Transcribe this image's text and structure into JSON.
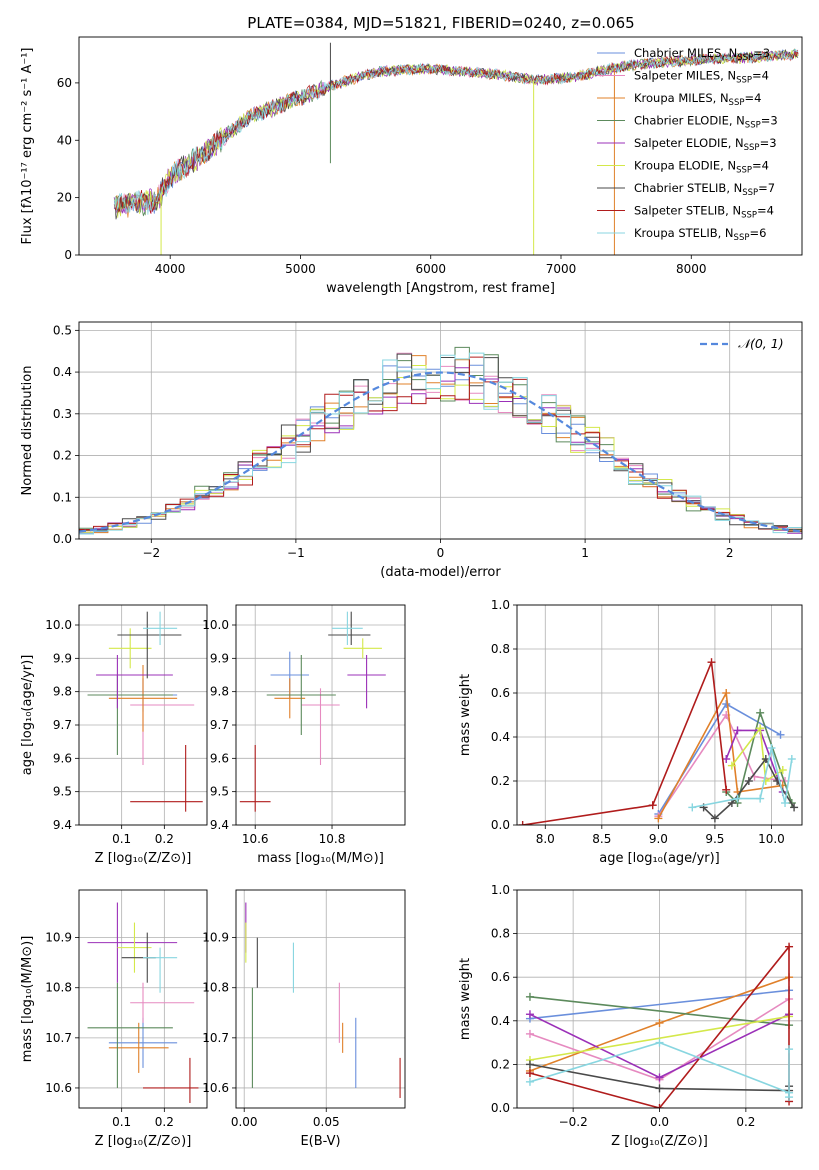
{
  "suptitle": "PLATE=0384, MJD=51821, FIBERID=0240, z=0.065",
  "colors": {
    "c1": "#6a8fdc",
    "c2": "#e68ac0",
    "c3": "#e0802a",
    "c4": "#5c8a5c",
    "c5": "#9b30b8",
    "c6": "#d4e84a",
    "c7": "#4a4a4a",
    "c8": "#b01c1c",
    "c9": "#88d6e0",
    "normal_curve": "#5588dd"
  },
  "models": [
    {
      "key": "c1",
      "name": "Chabrier MILES",
      "nssp": "3"
    },
    {
      "key": "c2",
      "name": "Salpeter MILES",
      "nssp": "4"
    },
    {
      "key": "c3",
      "name": "Kroupa MILES",
      "nssp": "4"
    },
    {
      "key": "c4",
      "name": "Chabrier ELODIE",
      "nssp": "3"
    },
    {
      "key": "c5",
      "name": "Salpeter ELODIE",
      "nssp": "3"
    },
    {
      "key": "c6",
      "name": "Kroupa ELODIE",
      "nssp": "4"
    },
    {
      "key": "c7",
      "name": "Chabrier STELIB",
      "nssp": "7"
    },
    {
      "key": "c8",
      "name": "Salpeter STELIB",
      "nssp": "4"
    },
    {
      "key": "c9",
      "name": "Kroupa STELIB",
      "nssp": "6"
    }
  ],
  "chart_data": [
    {
      "id": "spectrum",
      "type": "line",
      "xlabel": "wavelength [Angstrom, rest frame]",
      "ylabel": "Flux [fλ10⁻¹⁷ erg cm⁻² s⁻¹ A⁻¹]",
      "xlim": [
        3300,
        8850
      ],
      "ylim": [
        0,
        76
      ],
      "xticks": [
        4000,
        5000,
        6000,
        7000,
        8000
      ],
      "yticks": [
        0,
        20,
        40,
        60
      ],
      "legend": "upper right",
      "grid": false,
      "continuum_nodes": [
        [
          3570,
          17
        ],
        [
          3900,
          19
        ],
        [
          4000,
          27
        ],
        [
          4300,
          37
        ],
        [
          4600,
          48
        ],
        [
          5000,
          55
        ],
        [
          5300,
          60
        ],
        [
          5600,
          64
        ],
        [
          6000,
          65
        ],
        [
          6500,
          63
        ],
        [
          6800,
          61
        ],
        [
          7100,
          62
        ],
        [
          7500,
          66
        ],
        [
          8000,
          68
        ],
        [
          8500,
          69
        ],
        [
          8820,
          70
        ]
      ],
      "features": [
        {
          "x": 3930,
          "y": 0
        },
        {
          "x": 5230,
          "y": 74
        },
        {
          "x": 5230,
          "y": 32
        },
        {
          "x": 6790,
          "y": 0
        },
        {
          "x": 7410,
          "y": 0
        }
      ]
    },
    {
      "id": "residuals",
      "type": "area",
      "xlabel": "(data-model)/error",
      "ylabel": "Normed distribution",
      "xlim": [
        -2.5,
        2.5
      ],
      "ylim": [
        0,
        0.52
      ],
      "xticks": [
        -2,
        -1,
        0,
        1,
        2
      ],
      "yticks": [
        0.0,
        0.1,
        0.2,
        0.3,
        0.4,
        0.5
      ],
      "grid": true,
      "legend": "upper right",
      "legend_label": "𝒩(0, 1)",
      "bin_width": 0.1,
      "x_start": -2.5,
      "hist_seeds": [
        11,
        23,
        37,
        41,
        53,
        67,
        71,
        83,
        97
      ]
    },
    {
      "id": "age_vs_z",
      "type": "scatter",
      "xlabel": "Z [log₁₀(Z/Z⊙)]",
      "ylabel": "age  [log₁₀(age/yr)]",
      "xlim": [
        0.0,
        0.3
      ],
      "ylim": [
        9.4,
        10.06
      ],
      "xticks": [
        0.1,
        0.2
      ],
      "yticks": [
        9.4,
        9.5,
        9.6,
        9.7,
        9.8,
        9.9,
        10.0
      ],
      "grid": true,
      "points": [
        {
          "c": "c1",
          "x": 0.15,
          "xerr": [
            0.08,
            0.08
          ],
          "y": 9.79,
          "yerr": [
            0.05,
            0.05
          ]
        },
        {
          "c": "c2",
          "x": 0.15,
          "xerr": [
            0.03,
            0.12
          ],
          "y": 9.76,
          "yerr": [
            0.18,
            0.08
          ]
        },
        {
          "c": "c3",
          "x": 0.15,
          "xerr": [
            0.08,
            0.08
          ],
          "y": 9.78,
          "yerr": [
            0.1,
            0.1
          ]
        },
        {
          "c": "c4",
          "x": 0.09,
          "xerr": [
            0.07,
            0.13
          ],
          "y": 9.79,
          "yerr": [
            0.18,
            0.06
          ]
        },
        {
          "c": "c5",
          "x": 0.09,
          "xerr": [
            0.05,
            0.13
          ],
          "y": 9.85,
          "yerr": [
            0.1,
            0.06
          ]
        },
        {
          "c": "c6",
          "x": 0.12,
          "xerr": [
            0.05,
            0.05
          ],
          "y": 9.93,
          "yerr": [
            0.06,
            0.06
          ]
        },
        {
          "c": "c7",
          "x": 0.16,
          "xerr": [
            0.07,
            0.08
          ],
          "y": 9.97,
          "yerr": [
            0.13,
            0.07
          ]
        },
        {
          "c": "c8",
          "x": 0.25,
          "xerr": [
            0.13,
            0.04
          ],
          "y": 9.47,
          "yerr": [
            0.03,
            0.17
          ]
        },
        {
          "c": "c9",
          "x": 0.19,
          "xerr": [
            0.04,
            0.04
          ],
          "y": 9.99,
          "yerr": [
            0.05,
            0.05
          ]
        }
      ]
    },
    {
      "id": "age_vs_mass",
      "type": "scatter",
      "xlabel": "mass [log₁₀(M/M⊙)]",
      "ylabel": "",
      "xlim": [
        10.55,
        10.99
      ],
      "ylim": [
        9.4,
        10.06
      ],
      "xticks": [
        10.6,
        10.8
      ],
      "yticks": [
        9.4,
        9.5,
        9.6,
        9.7,
        9.8,
        9.9,
        10.0
      ],
      "grid": true,
      "points": [
        {
          "c": "c1",
          "x": 10.69,
          "xerr": [
            0.05,
            0.05
          ],
          "y": 9.85,
          "yerr": [
            0.07,
            0.07
          ]
        },
        {
          "c": "c2",
          "x": 10.77,
          "xerr": [
            0.05,
            0.05
          ],
          "y": 9.76,
          "yerr": [
            0.18,
            0.05
          ]
        },
        {
          "c": "c3",
          "x": 10.69,
          "xerr": [
            0.04,
            0.04
          ],
          "y": 9.78,
          "yerr": [
            0.06,
            0.06
          ]
        },
        {
          "c": "c4",
          "x": 10.72,
          "xerr": [
            0.09,
            0.09
          ],
          "y": 9.79,
          "yerr": [
            0.12,
            0.12
          ]
        },
        {
          "c": "c5",
          "x": 10.89,
          "xerr": [
            0.05,
            0.05
          ],
          "y": 9.85,
          "yerr": [
            0.1,
            0.06
          ]
        },
        {
          "c": "c6",
          "x": 10.88,
          "xerr": [
            0.05,
            0.05
          ],
          "y": 9.93,
          "yerr": [
            0.03,
            0.03
          ]
        },
        {
          "c": "c7",
          "x": 10.85,
          "xerr": [
            0.06,
            0.05
          ],
          "y": 9.97,
          "yerr": [
            0.03,
            0.07
          ]
        },
        {
          "c": "c8",
          "x": 10.6,
          "xerr": [
            0.04,
            0.04
          ],
          "y": 9.47,
          "yerr": [
            0.03,
            0.17
          ]
        },
        {
          "c": "c9",
          "x": 10.84,
          "xerr": [
            0.04,
            0.04
          ],
          "y": 9.99,
          "yerr": [
            0.05,
            0.05
          ]
        }
      ]
    },
    {
      "id": "weight_vs_age",
      "type": "line",
      "xlabel": "age  [log₁₀(age/yr)]",
      "ylabel": "mass weight",
      "xlim": [
        7.75,
        10.27
      ],
      "ylim": [
        0.0,
        1.0
      ],
      "xticks": [
        8.0,
        8.5,
        9.0,
        9.5,
        10.0
      ],
      "yticks": [
        0.0,
        0.2,
        0.4,
        0.6,
        0.8,
        1.0
      ],
      "grid": true,
      "series": [
        {
          "c": "c1",
          "x": [
            9.0,
            9.6,
            10.08
          ],
          "y": [
            0.05,
            0.55,
            0.41
          ]
        },
        {
          "c": "c2",
          "x": [
            9.0,
            9.6,
            9.85,
            10.12
          ],
          "y": [
            0.04,
            0.5,
            0.22,
            0.2
          ]
        },
        {
          "c": "c3",
          "x": [
            9.0,
            9.6,
            9.7,
            10.1
          ],
          "y": [
            0.03,
            0.6,
            0.15,
            0.18
          ]
        },
        {
          "c": "c4",
          "x": [
            9.6,
            9.7,
            9.9,
            10.18
          ],
          "y": [
            0.15,
            0.1,
            0.51,
            0.1
          ]
        },
        {
          "c": "c5",
          "x": [
            9.6,
            9.7,
            9.9,
            10.1
          ],
          "y": [
            0.3,
            0.43,
            0.43,
            0.15
          ]
        },
        {
          "c": "c6",
          "x": [
            9.65,
            9.9,
            9.95,
            10.1
          ],
          "y": [
            0.27,
            0.44,
            0.2,
            0.25
          ]
        },
        {
          "c": "c7",
          "x": [
            9.4,
            9.5,
            9.65,
            9.8,
            9.95,
            10.05,
            10.2
          ],
          "y": [
            0.08,
            0.03,
            0.1,
            0.2,
            0.3,
            0.2,
            0.08
          ]
        },
        {
          "c": "c8",
          "x": [
            7.8,
            8.95,
            9.47,
            9.6
          ],
          "y": [
            0.0,
            0.09,
            0.74,
            0.16
          ]
        },
        {
          "c": "c9",
          "x": [
            9.3,
            9.7,
            9.9,
            10.0,
            10.12,
            10.18
          ],
          "y": [
            0.08,
            0.12,
            0.12,
            0.35,
            0.1,
            0.3
          ]
        }
      ]
    },
    {
      "id": "mass_vs_z",
      "type": "scatter",
      "xlabel": "Z [log₁₀(Z/Z⊙)]",
      "ylabel": "mass [log₁₀(M/M⊙)]",
      "xlim": [
        0.0,
        0.3
      ],
      "ylim": [
        10.56,
        10.995
      ],
      "xticks": [
        0.1,
        0.2
      ],
      "yticks": [
        10.6,
        10.7,
        10.8,
        10.9
      ],
      "grid": true,
      "points": [
        {
          "c": "c1",
          "x": 0.15,
          "xerr": [
            0.08,
            0.08
          ],
          "y": 10.69,
          "yerr": [
            0.05,
            0.05
          ]
        },
        {
          "c": "c2",
          "x": 0.15,
          "xerr": [
            0.03,
            0.12
          ],
          "y": 10.77,
          "yerr": [
            0.04,
            0.04
          ]
        },
        {
          "c": "c3",
          "x": 0.14,
          "xerr": [
            0.07,
            0.07
          ],
          "y": 10.68,
          "yerr": [
            0.05,
            0.05
          ]
        },
        {
          "c": "c4",
          "x": 0.09,
          "xerr": [
            0.07,
            0.13
          ],
          "y": 10.72,
          "yerr": [
            0.12,
            0.09
          ]
        },
        {
          "c": "c5",
          "x": 0.09,
          "xerr": [
            0.07,
            0.14
          ],
          "y": 10.89,
          "yerr": [
            0.08,
            0.08
          ]
        },
        {
          "c": "c6",
          "x": 0.13,
          "xerr": [
            0.04,
            0.04
          ],
          "y": 10.88,
          "yerr": [
            0.05,
            0.05
          ]
        },
        {
          "c": "c7",
          "x": 0.16,
          "xerr": [
            0.06,
            0.02
          ],
          "y": 10.86,
          "yerr": [
            0.05,
            0.05
          ]
        },
        {
          "c": "c8",
          "x": 0.26,
          "xerr": [
            0.11,
            0.02
          ],
          "y": 10.6,
          "yerr": [
            0.03,
            0.06
          ]
        },
        {
          "c": "c9",
          "x": 0.19,
          "xerr": [
            0.04,
            0.04
          ],
          "y": 10.86,
          "yerr": [
            0.07,
            0.02
          ]
        }
      ]
    },
    {
      "id": "mass_vs_ebv",
      "type": "scatter",
      "xlabel": "E(B-V)",
      "ylabel": "",
      "xlim": [
        -0.005,
        0.098
      ],
      "ylim": [
        10.56,
        10.995
      ],
      "xticks": [
        0.0,
        0.05
      ],
      "xtick_labels": [
        "0.00",
        "0.05"
      ],
      "yticks": [
        10.6,
        10.7,
        10.8,
        10.9
      ],
      "grid": true,
      "points": [
        {
          "c": "c1",
          "x": 0.068,
          "y": 10.67,
          "yerr": [
            0.07,
            0.07
          ]
        },
        {
          "c": "c2",
          "x": 0.058,
          "y": 10.75,
          "yerr": [
            0.06,
            0.06
          ]
        },
        {
          "c": "c3",
          "x": 0.06,
          "y": 10.7,
          "yerr": [
            0.03,
            0.03
          ]
        },
        {
          "c": "c4",
          "x": 0.005,
          "y": 10.7,
          "yerr": [
            0.1,
            0.1
          ]
        },
        {
          "c": "c5",
          "x": 0.001,
          "y": 10.92,
          "yerr": [
            0.05,
            0.05
          ]
        },
        {
          "c": "c6",
          "x": 0.001,
          "y": 10.89,
          "yerr": [
            0.04,
            0.04
          ]
        },
        {
          "c": "c7",
          "x": 0.008,
          "y": 10.85,
          "yerr": [
            0.05,
            0.05
          ]
        },
        {
          "c": "c8",
          "x": 0.095,
          "y": 10.62,
          "yerr": [
            0.04,
            0.04
          ]
        },
        {
          "c": "c9",
          "x": 0.03,
          "y": 10.84,
          "yerr": [
            0.05,
            0.05
          ]
        }
      ]
    },
    {
      "id": "weight_vs_z",
      "type": "line",
      "xlabel": "Z [log₁₀(Z/Z⊙)]",
      "ylabel": "mass weight",
      "xlim": [
        -0.33,
        0.33
      ],
      "ylim": [
        0.0,
        1.0
      ],
      "xticks": [
        -0.2,
        0.0,
        0.2
      ],
      "xtick_labels": [
        "−0.2",
        "0.0",
        "0.2"
      ],
      "yticks": [
        0.0,
        0.2,
        0.4,
        0.6,
        0.8,
        1.0
      ],
      "grid": true,
      "series": [
        {
          "c": "c1",
          "x": [
            -0.3,
            0.3
          ],
          "y": [
            0.41,
            0.54
          ]
        },
        {
          "c": "c2",
          "x": [
            -0.3,
            0.0,
            0.3
          ],
          "y": [
            0.34,
            0.13,
            0.5
          ]
        },
        {
          "c": "c3",
          "x": [
            -0.3,
            0.0,
            0.3
          ],
          "y": [
            0.17,
            0.39,
            0.6
          ]
        },
        {
          "c": "c4",
          "x": [
            -0.3,
            0.3
          ],
          "y": [
            0.51,
            0.38
          ]
        },
        {
          "c": "c5",
          "x": [
            -0.3,
            0.0,
            0.3
          ],
          "y": [
            0.43,
            0.14,
            0.43
          ]
        },
        {
          "c": "c6",
          "x": [
            -0.3,
            0.3
          ],
          "y": [
            0.22,
            0.42
          ]
        },
        {
          "c": "c7",
          "x": [
            -0.3,
            0.0,
            0.3,
            0.3
          ],
          "y": [
            0.2,
            0.09,
            0.08,
            0.1
          ]
        },
        {
          "c": "c8",
          "x": [
            -0.3,
            0.0,
            0.3,
            0.3
          ],
          "y": [
            0.16,
            0.0,
            0.74,
            0.03
          ]
        },
        {
          "c": "c9",
          "x": [
            -0.3,
            0.0,
            0.3,
            0.3,
            0.3
          ],
          "y": [
            0.12,
            0.3,
            0.07,
            0.27,
            0.05
          ]
        }
      ]
    }
  ]
}
